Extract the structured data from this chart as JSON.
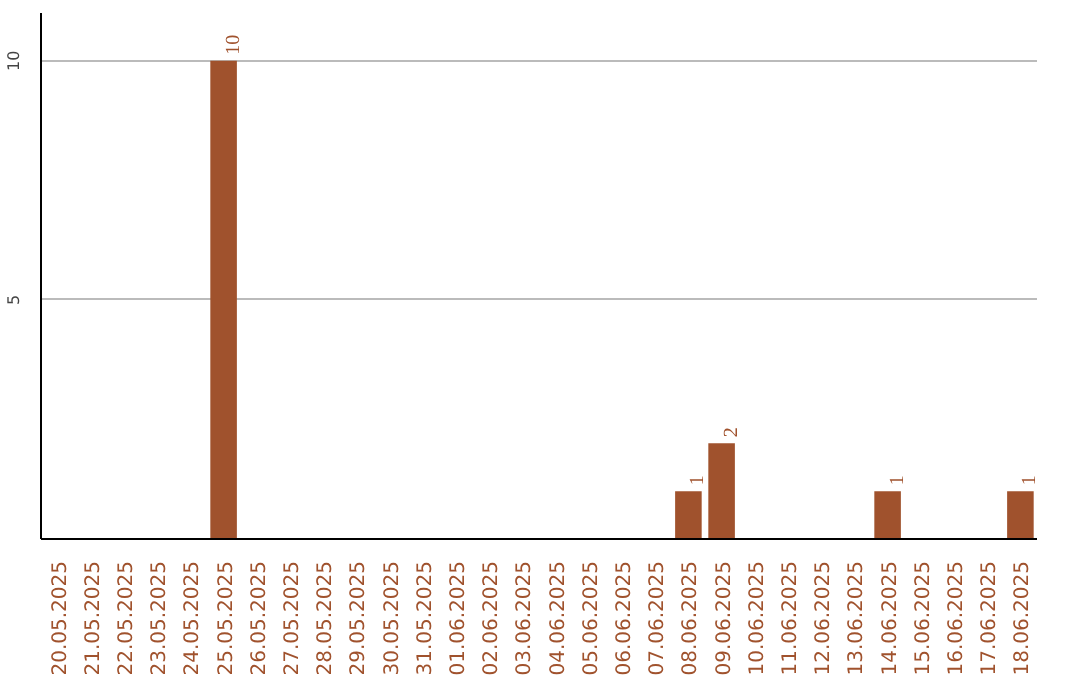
{
  "chart_data": {
    "type": "bar",
    "categories": [
      "20.05.2025",
      "21.05.2025",
      "22.05.2025",
      "23.05.2025",
      "24.05.2025",
      "25.05.2025",
      "26.05.2025",
      "27.05.2025",
      "28.05.2025",
      "29.05.2025",
      "30.05.2025",
      "31.05.2025",
      "01.06.2025",
      "02.06.2025",
      "03.06.2025",
      "04.06.2025",
      "05.06.2025",
      "06.06.2025",
      "07.06.2025",
      "08.06.2025",
      "09.06.2025",
      "10.06.2025",
      "11.06.2025",
      "12.06.2025",
      "13.06.2025",
      "14.06.2025",
      "15.06.2025",
      "16.06.2025",
      "17.06.2025",
      "18.06.2025"
    ],
    "values": [
      0,
      0,
      0,
      0,
      0,
      10,
      0,
      0,
      0,
      0,
      0,
      0,
      0,
      0,
      0,
      0,
      0,
      0,
      0,
      1,
      2,
      0,
      0,
      0,
      0,
      1,
      0,
      0,
      0,
      1
    ],
    "value_labels": [
      null,
      null,
      null,
      null,
      null,
      "10",
      null,
      null,
      null,
      null,
      null,
      null,
      null,
      null,
      null,
      null,
      null,
      null,
      null,
      "1",
      "2",
      null,
      null,
      null,
      null,
      "1",
      null,
      null,
      null,
      "1"
    ],
    "color": "#a0522d",
    "ylim": [
      0,
      11
    ],
    "yticks": [
      5,
      10
    ],
    "grid": "y"
  }
}
